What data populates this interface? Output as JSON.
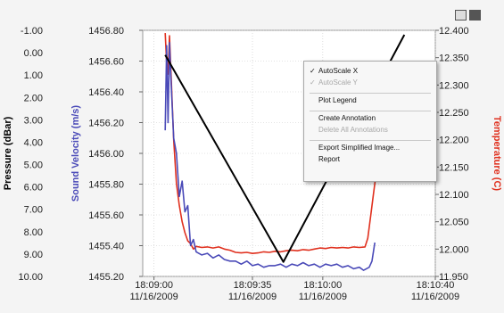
{
  "chart_data": {
    "type": "line",
    "ylabel_left_outer": "Pressure (dBar)",
    "ylabel_left_inner": "Sound Velocity (m/s)",
    "ylabel_right": "Temperature (C)",
    "colors": {
      "pressure": "#000000",
      "sound_velocity": "#4a4ab8",
      "temperature": "#e0301e",
      "background": "#ffffff",
      "grid": "#c8c8c8"
    },
    "grid": true,
    "pressure_axis": {
      "ylim": [
        10.0,
        -1.0
      ],
      "ticks": [
        "-1.00",
        "0.00",
        "1.00",
        "2.00",
        "3.00",
        "4.00",
        "5.00",
        "6.00",
        "7.00",
        "8.00",
        "9.00",
        "10.00"
      ]
    },
    "sound_velocity_axis": {
      "ylim": [
        1455.2,
        1456.8
      ],
      "ticks": [
        "1455.20",
        "1455.40",
        "1455.60",
        "1455.80",
        "1456.00",
        "1456.20",
        "1456.40",
        "1456.60",
        "1456.80"
      ]
    },
    "temperature_axis": {
      "ylim": [
        11.95,
        12.4
      ],
      "ticks": [
        "11.950",
        "12.000",
        "12.050",
        "12.100",
        "12.150",
        "12.200",
        "12.250",
        "12.300",
        "12.350",
        "12.400"
      ]
    },
    "x_ticks": [
      {
        "t": 0,
        "time": "18:09:00",
        "date": "11/16/2009"
      },
      {
        "t": 35,
        "time": "18:09:35",
        "date": "11/16/2009"
      },
      {
        "t": 60,
        "time": "18:10:00",
        "date": "11/16/2009"
      },
      {
        "t": 100,
        "time": "18:10:40",
        "date": "11/16/2009"
      }
    ],
    "xlim": [
      -4,
      100
    ],
    "series": [
      {
        "key": "pressure",
        "axis": "pressure",
        "x": [
          4,
          46,
          89
        ],
        "y": [
          0.1,
          9.35,
          -0.8
        ]
      },
      {
        "key": "sound_velocity",
        "axis": "sound_velocity",
        "x": [
          4,
          4.5,
          5,
          5.5,
          6,
          7,
          8,
          9,
          10,
          11,
          12,
          13,
          14,
          15,
          17,
          19,
          21,
          23,
          25,
          27,
          29,
          31,
          33,
          35,
          37,
          39,
          41,
          43,
          45,
          47,
          49,
          51,
          53,
          55,
          57,
          59,
          61,
          63,
          65,
          67,
          69,
          71,
          73,
          74.5,
          75.5,
          76.5,
          77.5,
          78.5
        ],
        "y": [
          1456.15,
          1456.7,
          1456.2,
          1456.72,
          1456.5,
          1456.1,
          1456.0,
          1455.72,
          1455.82,
          1455.62,
          1455.66,
          1455.4,
          1455.44,
          1455.36,
          1455.34,
          1455.35,
          1455.32,
          1455.34,
          1455.31,
          1455.3,
          1455.3,
          1455.28,
          1455.3,
          1455.27,
          1455.28,
          1455.26,
          1455.27,
          1455.27,
          1455.28,
          1455.26,
          1455.28,
          1455.27,
          1455.29,
          1455.27,
          1455.28,
          1455.26,
          1455.28,
          1455.27,
          1455.28,
          1455.26,
          1455.27,
          1455.25,
          1455.26,
          1455.24,
          1455.25,
          1455.26,
          1455.3,
          1455.42
        ]
      },
      {
        "key": "temperature",
        "axis": "temperature",
        "x": [
          4,
          4.5,
          5,
          5.5,
          6,
          7,
          8,
          9,
          10,
          11,
          12,
          13,
          14,
          15,
          17,
          19,
          21,
          23,
          25,
          27,
          29,
          31,
          33,
          35,
          37,
          39,
          41,
          43,
          45,
          47,
          49,
          51,
          53,
          55,
          57,
          59,
          61,
          63,
          65,
          67,
          69,
          71,
          73,
          75,
          76,
          77,
          78,
          79,
          80
        ],
        "y": [
          12.395,
          12.34,
          12.32,
          12.39,
          12.33,
          12.2,
          12.12,
          12.08,
          12.05,
          12.03,
          12.015,
          12.01,
          12.0,
          12.005,
          12.003,
          12.004,
          12.002,
          12.004,
          12.0,
          11.998,
          11.994,
          11.993,
          11.994,
          11.992,
          11.993,
          11.995,
          11.994,
          11.996,
          11.995,
          11.997,
          11.998,
          11.997,
          11.999,
          11.998,
          12.0,
          12.002,
          12.001,
          12.003,
          12.002,
          12.003,
          12.002,
          12.004,
          12.003,
          12.004,
          12.02,
          12.06,
          12.1,
          12.14,
          12.16
        ]
      }
    ],
    "context_menu": {
      "items": [
        {
          "label": "AutoScale X",
          "checked": true,
          "enabled": true
        },
        {
          "label": "AutoScale Y",
          "checked": true,
          "enabled": false
        },
        {
          "sep": true
        },
        {
          "label": "Plot Legend",
          "checked": false,
          "enabled": true
        },
        {
          "sep": true
        },
        {
          "label": "Create Annotation",
          "checked": false,
          "enabled": true
        },
        {
          "label": "Delete All Annotations",
          "checked": false,
          "enabled": false
        },
        {
          "sep": true
        },
        {
          "label": "Export Simplified Image...",
          "checked": false,
          "enabled": true
        },
        {
          "label": "Report",
          "checked": false,
          "enabled": true
        }
      ]
    },
    "toolbar": {
      "icons": [
        "zoom-tool-icon",
        "plot-settings-icon"
      ]
    }
  }
}
